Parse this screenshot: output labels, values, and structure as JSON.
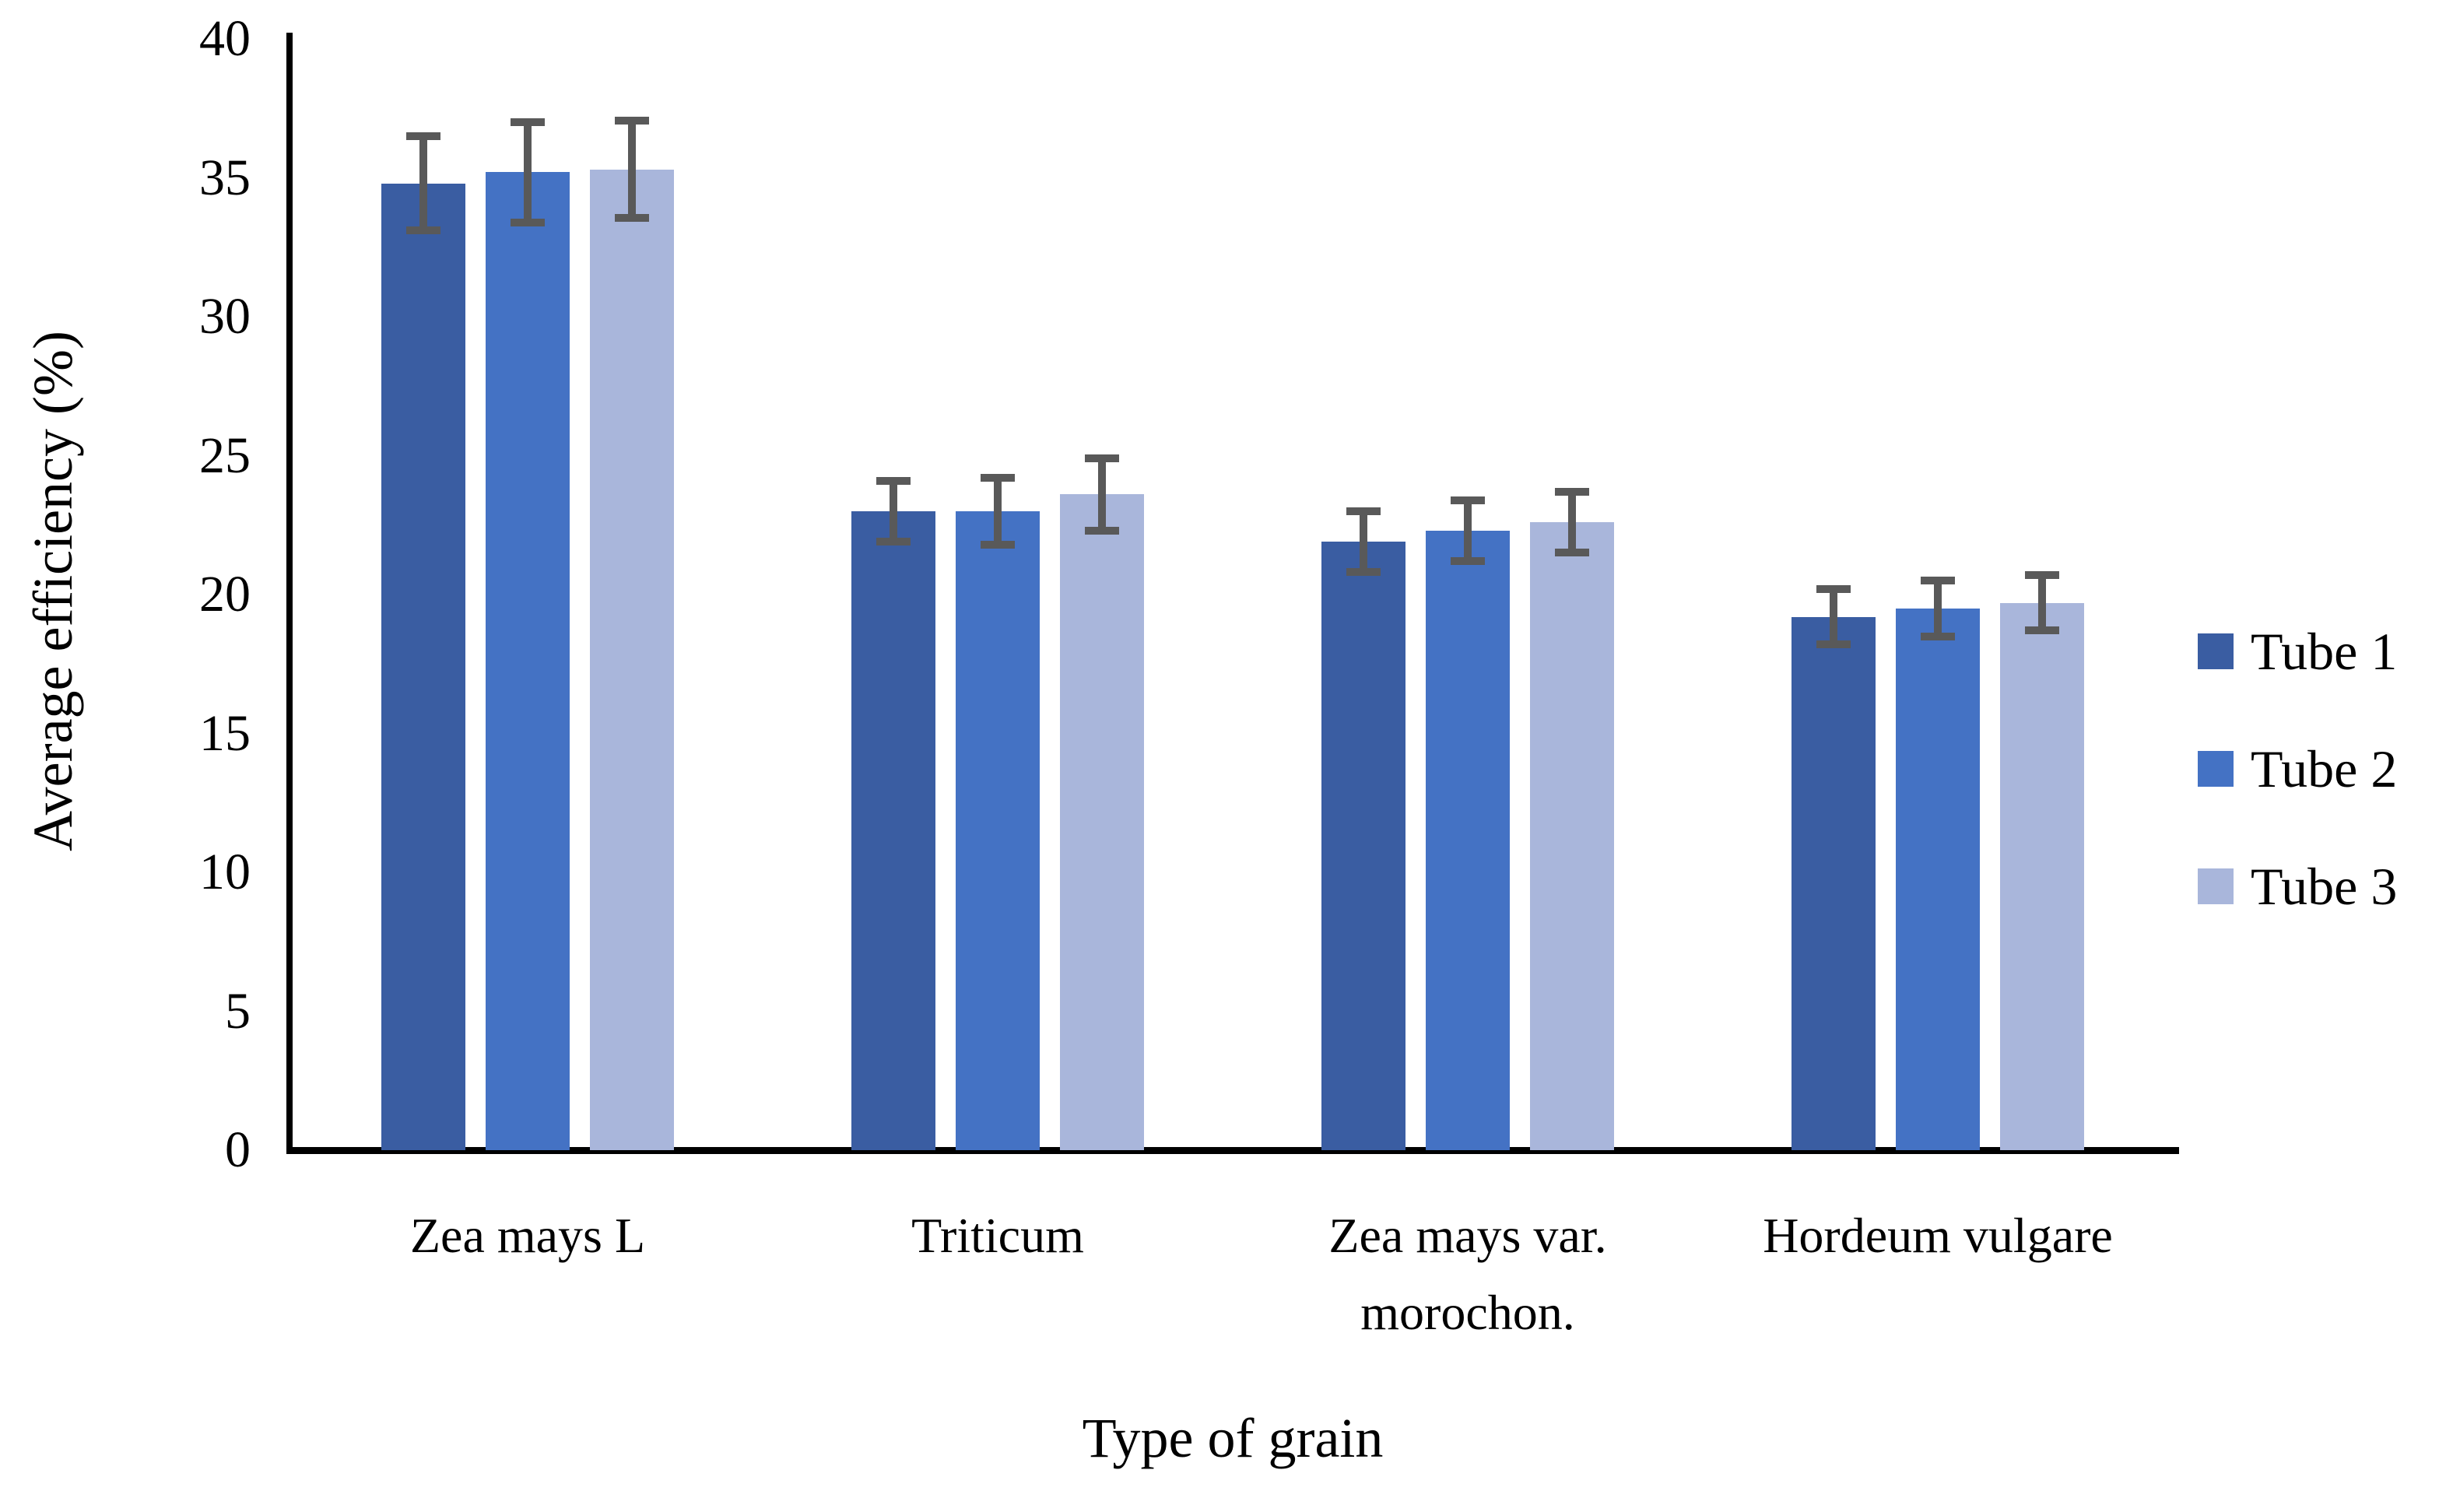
{
  "figure": {
    "background": "#ffffff",
    "axis_color": "#000000",
    "error_bar_color": "#595959"
  },
  "chart_data": {
    "type": "bar",
    "title": "",
    "xlabel": "Type of grain",
    "ylabel": "Average efficiency (%)",
    "categories": [
      "Zea mays L",
      "Triticum",
      "Zea mays var.\nmorochon.",
      "Hordeum vulgare"
    ],
    "series": [
      {
        "name": "Tube 1",
        "color": "#3A5DA2",
        "values": [
          34.8,
          23.0,
          21.9,
          19.2
        ],
        "errors": [
          1.7,
          1.1,
          1.1,
          1.0
        ]
      },
      {
        "name": "Tube 2",
        "color": "#4472C4",
        "values": [
          35.2,
          23.0,
          22.3,
          19.5
        ],
        "errors": [
          1.8,
          1.2,
          1.1,
          1.0
        ]
      },
      {
        "name": "Tube 3",
        "color": "#A9B6DB",
        "values": [
          35.3,
          23.6,
          22.6,
          19.7
        ],
        "errors": [
          1.75,
          1.3,
          1.1,
          1.0
        ]
      }
    ],
    "ylim": [
      0,
      40
    ],
    "yticks": [
      0,
      5,
      10,
      15,
      20,
      25,
      30,
      35,
      40
    ],
    "grid": false,
    "legend_position": "right",
    "error_bars": true
  }
}
